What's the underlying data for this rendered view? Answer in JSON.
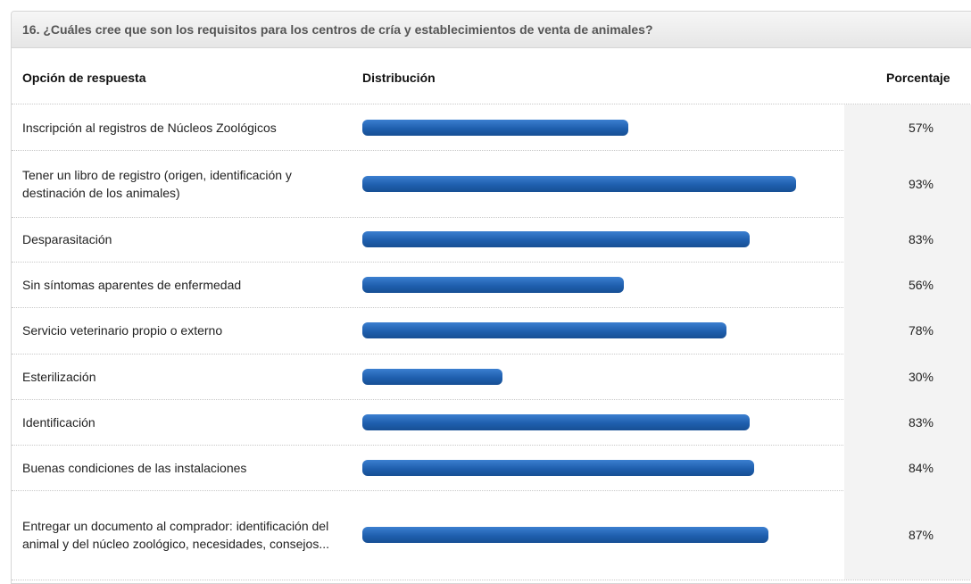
{
  "chart_data": {
    "type": "bar",
    "title": "16. ¿Cuáles cree que son los requisitos para los centros de cría y establecimientos de venta de animales?",
    "column_headers": [
      "Opción de respuesta",
      "Distribución",
      "Porcentaje"
    ],
    "categories": [
      "Inscripción al registros de Núcleos Zoológicos",
      "Tener un libro de registro (origen, identificación y destinación de los animales)",
      "Desparasitación",
      "Sin síntomas aparentes de enfermedad",
      "Servicio veterinario propio o externo",
      "Esterilización",
      "Identificación",
      "Buenas condiciones de las instalaciones",
      "Entregar un documento al comprador: identificación del animal y del núcleo zoológico, necesidades, consejos..."
    ],
    "values": [
      57,
      93,
      83,
      56,
      78,
      30,
      83,
      84,
      87
    ],
    "value_labels": [
      "57%",
      "93%",
      "83%",
      "56%",
      "78%",
      "30%",
      "83%",
      "84%",
      "87%"
    ],
    "color": "#1f5fae"
  }
}
